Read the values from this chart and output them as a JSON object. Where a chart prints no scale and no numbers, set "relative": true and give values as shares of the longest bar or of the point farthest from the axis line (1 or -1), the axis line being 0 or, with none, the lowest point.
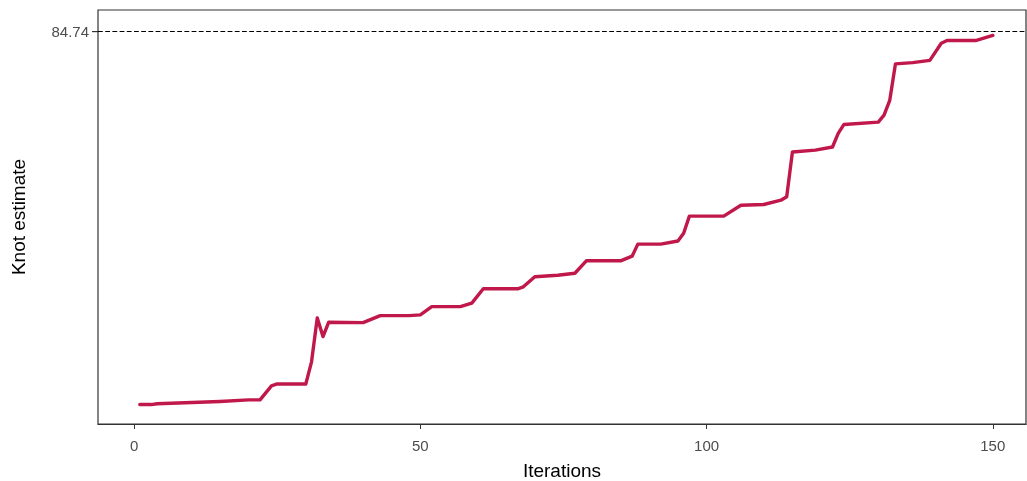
{
  "chart_data": {
    "type": "line",
    "xlabel": "Iterations",
    "ylabel": "Knot estimate",
    "relative": true,
    "color": "#c0184a",
    "marker": "none",
    "line_style": "solid",
    "grid": false,
    "xlim": [
      -6.3,
      155.8
    ],
    "xticks": [
      0,
      50,
      100,
      150
    ],
    "x": [
      1,
      3,
      4,
      15,
      20,
      22,
      24,
      25,
      30,
      31,
      32,
      33,
      34,
      40,
      43,
      48,
      50,
      52,
      57,
      59,
      61,
      67,
      68,
      70,
      74,
      77,
      79,
      85,
      87,
      88,
      92,
      95,
      96,
      97,
      103,
      106,
      110,
      113,
      114,
      115,
      119,
      122,
      123,
      124,
      130,
      131,
      132,
      133,
      136,
      139,
      141,
      142,
      147,
      150
    ],
    "values": [
      0.05,
      0.05,
      0.052,
      0.058,
      0.062,
      0.062,
      0.098,
      0.103,
      0.103,
      0.16,
      0.273,
      0.225,
      0.262,
      0.261,
      0.279,
      0.279,
      0.281,
      0.302,
      0.302,
      0.311,
      0.348,
      0.348,
      0.353,
      0.379,
      0.383,
      0.388,
      0.42,
      0.42,
      0.432,
      0.463,
      0.463,
      0.471,
      0.491,
      0.535,
      0.535,
      0.563,
      0.565,
      0.576,
      0.585,
      0.7,
      0.705,
      0.713,
      0.748,
      0.771,
      0.777,
      0.795,
      0.833,
      0.927,
      0.93,
      0.936,
      0.98,
      0.987,
      0.987,
      1.0
    ],
    "ref_lines": [
      {
        "axis": "y",
        "value": 1.01,
        "color": "#000000",
        "line_style": "dashed"
      }
    ],
    "annotations": [
      "84.74"
    ]
  }
}
